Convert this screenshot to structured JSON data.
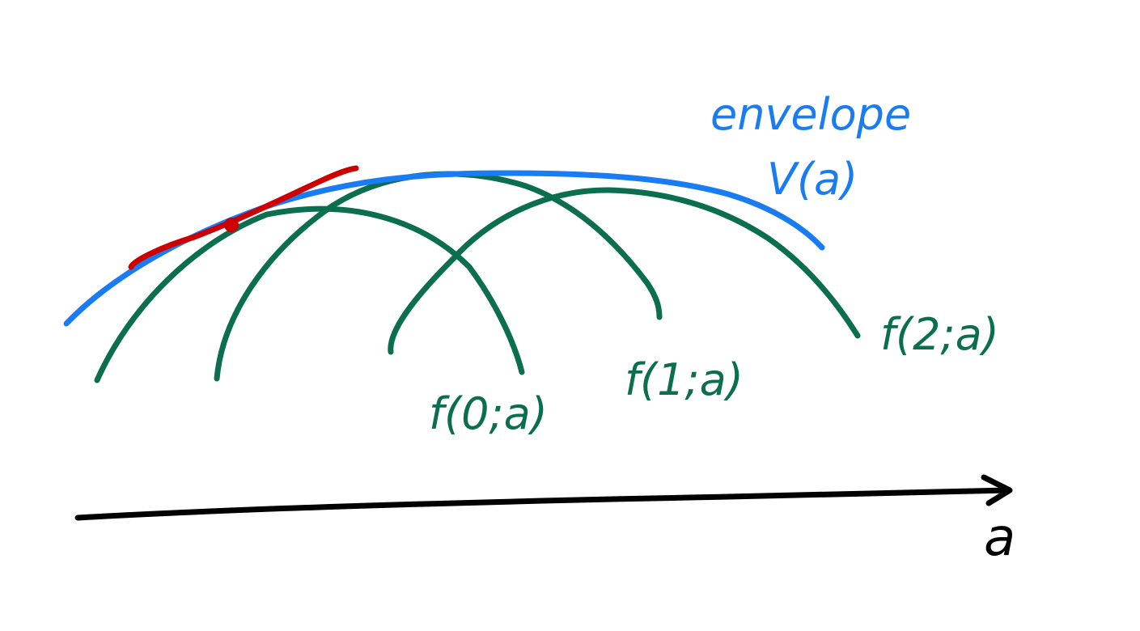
{
  "colors": {
    "curve": "#0b6e4f",
    "envelope": "#1a7cf2",
    "tangent": "#cc0000",
    "axis": "#000000",
    "background": "#ffffff"
  },
  "labels": {
    "envelope_word": "envelope",
    "envelope_symbol": "V(a)",
    "curve_0": "f(0;a)",
    "curve_1": "f(1;a)",
    "curve_2": "f(2;a)",
    "axis": "a"
  },
  "marks": {
    "tangent_point": "tangency-dot"
  }
}
